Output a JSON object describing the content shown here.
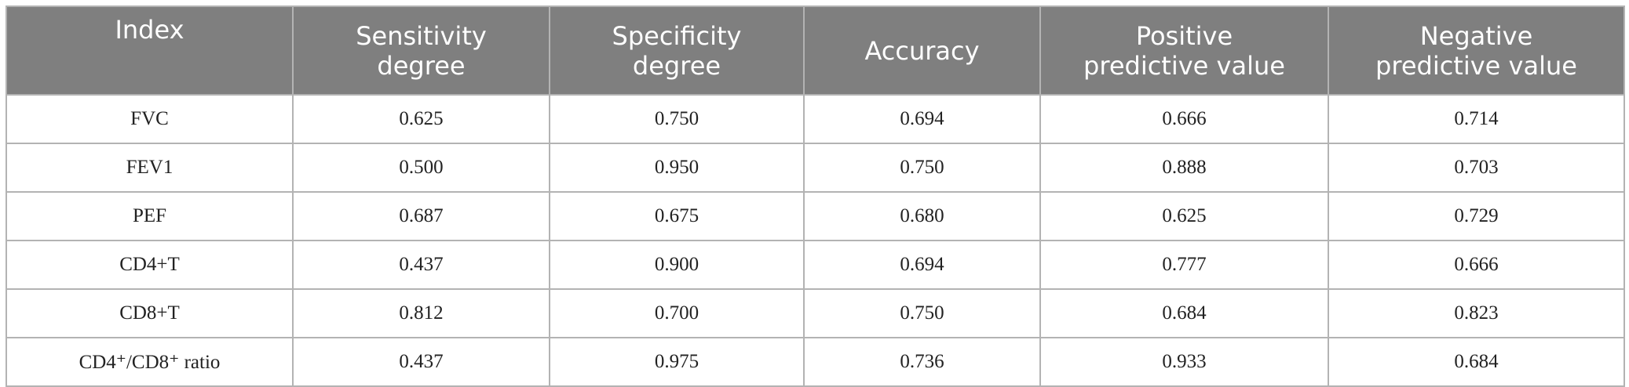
{
  "table": {
    "header": [
      "Index",
      "Sensitivity\ndegree",
      "Specificity\ndegree",
      "Accuracy",
      "Positive\npredictive value",
      "Negative\npredictive value"
    ],
    "rows": [
      [
        "FVC",
        "0.625",
        "0.750",
        "0.694",
        "0.666",
        "0.714"
      ],
      [
        "FEV1",
        "0.500",
        "0.950",
        "0.750",
        "0.888",
        "0.703"
      ],
      [
        "PEF",
        "0.687",
        "0.675",
        "0.680",
        "0.625",
        "0.729"
      ],
      [
        "CD4+T",
        "0.437",
        "0.900",
        "0.694",
        "0.777",
        "0.666"
      ],
      [
        "CD8+T",
        "0.812",
        "0.700",
        "0.750",
        "0.684",
        "0.823"
      ],
      [
        "CD4⁺/CD8⁺ ratio",
        "0.437",
        "0.975",
        "0.736",
        "0.933",
        "0.684"
      ]
    ]
  }
}
